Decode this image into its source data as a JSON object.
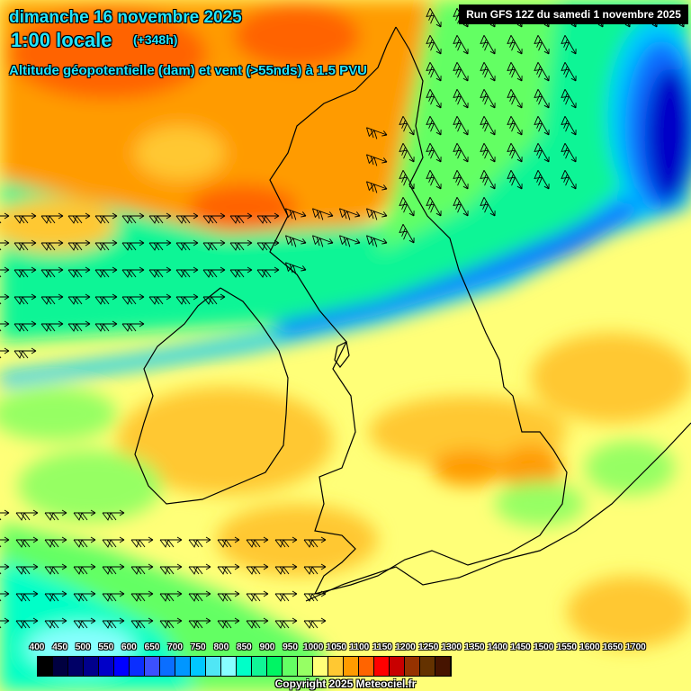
{
  "header": {
    "date": "dimanche 16 novembre 2025",
    "time": "1:00 locale",
    "lead": "(+348h)",
    "parameter": "Altitude géopotentielle (dam) et vent (>55nds) à 1.5 PVU",
    "run": "Run GFS 12Z du samedi 1 novembre 2025"
  },
  "legend": {
    "labels": [
      "400",
      "450",
      "500",
      "550",
      "600",
      "650",
      "700",
      "750",
      "800",
      "850",
      "900",
      "950",
      "1000",
      "1050",
      "1100",
      "1150",
      "1200",
      "1250",
      "1300",
      "1350",
      "1400",
      "1450",
      "1500",
      "1550",
      "1600",
      "1650",
      "1700"
    ],
    "colors": [
      "#000000",
      "#000040",
      "#000066",
      "#00008c",
      "#0000c8",
      "#0000ff",
      "#0a2eff",
      "#3c50ff",
      "#0a6eff",
      "#0096ff",
      "#00c8ff",
      "#50e6f5",
      "#87ffff",
      "#00ffc8",
      "#10f596",
      "#00f564",
      "#64ff64",
      "#96ff64",
      "#ffff78",
      "#ffc832",
      "#ff9b00",
      "#ff6400",
      "#ff0000",
      "#c80000",
      "#963200",
      "#643200",
      "#461400"
    ]
  },
  "copyright": "Copyright 2025 Meteociel.fr"
}
